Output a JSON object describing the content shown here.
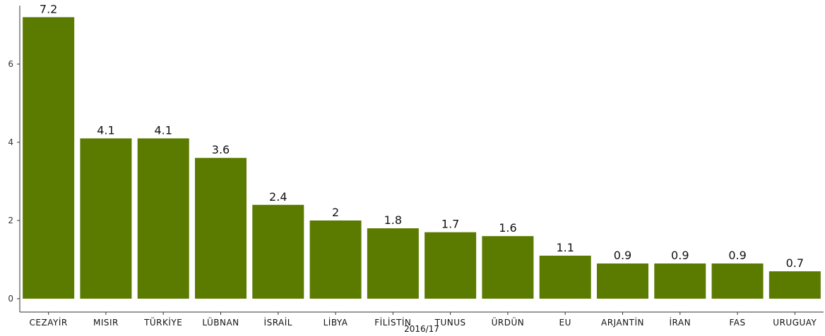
{
  "chart_data": {
    "type": "bar",
    "xlabel": "2016/17",
    "ylabel": "",
    "categories": [
      "CEZAYİR",
      "MISIR",
      "TÜRKİYE",
      "LÜBNAN",
      "İSRAİL",
      "LİBYA",
      "FİLİSTİN",
      "TUNUS",
      "ÜRDÜN",
      "EU",
      "ARJANTİN",
      "İRAN",
      "FAS",
      "URUGUAY"
    ],
    "values": [
      7.2,
      4.1,
      4.1,
      3.6,
      2.4,
      2,
      1.8,
      1.7,
      1.6,
      1.1,
      0.9,
      0.9,
      0.9,
      0.7
    ],
    "value_labels": [
      "7.2",
      "4.1",
      "4.1",
      "3.6",
      "2.4",
      "2",
      "1.8",
      "1.7",
      "1.6",
      "1.1",
      "0.9",
      "0.9",
      "0.9",
      "0.7"
    ],
    "yticks": [
      0,
      2,
      4,
      6
    ],
    "ylim": [
      0,
      7.56
    ],
    "bar_color": "#5a7a00",
    "grid": false,
    "legend": "none"
  }
}
